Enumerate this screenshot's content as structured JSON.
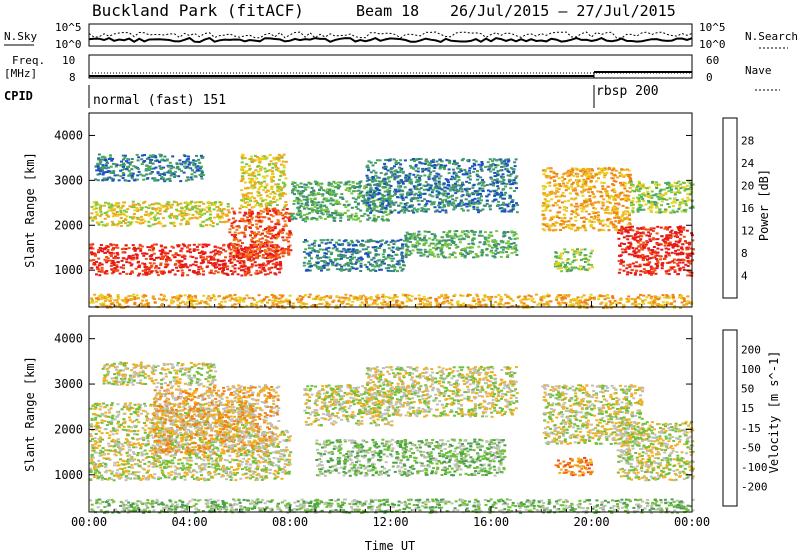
{
  "header": {
    "station": "Buckland Park (fitACF)",
    "beam": "Beam 18",
    "date_range": "26/Jul/2015 – 27/Jul/2015"
  },
  "strips": {
    "nsky_label": "N.Sky",
    "nsky_ticks": [
      "10^5",
      "10^0"
    ],
    "nsearch_label": "N.Search",
    "nsearch_ticks": [
      "10^5",
      "10^0"
    ],
    "freq_label_1": "Freq.",
    "freq_label_2": "[MHz]",
    "freq_ticks": [
      "10",
      "8"
    ],
    "nave_label": "Nave",
    "nave_ticks": [
      "60",
      "0"
    ],
    "cpid_label": "CPID",
    "modes": [
      {
        "name": "normal (fast) 151",
        "start_hour": 0
      },
      {
        "name": "rbsp 200",
        "start_hour": 20.0
      }
    ]
  },
  "chart_data": [
    {
      "type": "heatmap",
      "name": "power",
      "title": "",
      "xlabel": "",
      "ylabel": "Slant Range [km]",
      "xlim": [
        0,
        24
      ],
      "ylim": [
        180,
        4500
      ],
      "y_ticks": [
        1000,
        2000,
        3000,
        4000
      ],
      "colorbar": {
        "label": "Power [dB]",
        "tick_labels": [
          "4",
          "8",
          "12",
          "16",
          "20",
          "24",
          "28"
        ],
        "colors": [
          "#0018ff",
          "#1c4fc4",
          "#3e8a7a",
          "#48a860",
          "#7cc83c",
          "#e8d020",
          "#f0a820",
          "#f08018",
          "#f05018",
          "#e81818"
        ]
      },
      "regions": [
        {
          "h0": 0.0,
          "h1": 7.6,
          "r0": 900,
          "r1": 1600,
          "level": 9
        },
        {
          "h0": 5.5,
          "h1": 8.0,
          "r0": 1300,
          "r1": 2400,
          "level": 8
        },
        {
          "h0": 0.0,
          "h1": 5.5,
          "r0": 2000,
          "r1": 2550,
          "level": 5
        },
        {
          "h0": 6.0,
          "h1": 7.8,
          "r0": 2400,
          "r1": 3600,
          "level": 5
        },
        {
          "h0": 0.2,
          "h1": 4.5,
          "r0": 3000,
          "r1": 3600,
          "level": 2
        },
        {
          "h0": 8.0,
          "h1": 12.0,
          "r0": 2100,
          "r1": 3000,
          "level": 3
        },
        {
          "h0": 8.5,
          "h1": 12.5,
          "r0": 1000,
          "r1": 1700,
          "level": 2
        },
        {
          "h0": 12.5,
          "h1": 17.0,
          "r0": 1300,
          "r1": 1900,
          "level": 3
        },
        {
          "h0": 11.0,
          "h1": 17.0,
          "r0": 2300,
          "r1": 3500,
          "level": 2
        },
        {
          "h0": 18.0,
          "h1": 21.5,
          "r0": 1900,
          "r1": 3300,
          "level": 6
        },
        {
          "h0": 18.5,
          "h1": 20.0,
          "r0": 1000,
          "r1": 1500,
          "level": 4
        },
        {
          "h0": 21.0,
          "h1": 24.0,
          "r0": 900,
          "r1": 2000,
          "level": 9
        },
        {
          "h0": 21.5,
          "h1": 24.0,
          "r0": 2300,
          "r1": 3000,
          "level": 4
        },
        {
          "h0": 0.0,
          "h1": 24.0,
          "r0": 180,
          "r1": 480,
          "level": 6
        }
      ]
    },
    {
      "type": "heatmap",
      "name": "velocity",
      "title": "",
      "xlabel": "Time UT",
      "ylabel": "Slant Range [km]",
      "xlim": [
        0,
        24
      ],
      "ylim": [
        180,
        4500
      ],
      "y_ticks": [
        1000,
        2000,
        3000,
        4000
      ],
      "x_tick_labels": [
        "00:00",
        "04:00",
        "08:00",
        "12:00",
        "16:00",
        "20:00",
        "00:00"
      ],
      "colorbar": {
        "label": "Velocity [m s^-1]",
        "tick_labels": [
          "200",
          "100",
          "50",
          "15",
          "-15",
          "-50",
          "-100",
          "-200"
        ],
        "colors": [
          "#1020c0",
          "#2848b0",
          "#408060",
          "#48a048",
          "#70c038",
          "#c0c0b8",
          "#f0b020",
          "#f08018",
          "#f04818",
          "#e81818"
        ]
      },
      "regions": [
        {
          "h0": 0.0,
          "h1": 8.0,
          "r0": 900,
          "r1": 2000,
          "level": 5
        },
        {
          "h0": 0.0,
          "h1": 6.5,
          "r0": 2000,
          "r1": 2600,
          "level": 5
        },
        {
          "h0": 2.5,
          "h1": 7.5,
          "r0": 1500,
          "r1": 3000,
          "level": 6
        },
        {
          "h0": 0.5,
          "h1": 5.0,
          "r0": 3000,
          "r1": 3500,
          "level": 5
        },
        {
          "h0": 8.5,
          "h1": 12.0,
          "r0": 2100,
          "r1": 3000,
          "level": 5
        },
        {
          "h0": 9.0,
          "h1": 16.5,
          "r0": 1000,
          "r1": 1800,
          "level": 4
        },
        {
          "h0": 11.0,
          "h1": 17.0,
          "r0": 2300,
          "r1": 3400,
          "level": 5
        },
        {
          "h0": 18.0,
          "h1": 22.0,
          "r0": 1700,
          "r1": 3000,
          "level": 5
        },
        {
          "h0": 18.5,
          "h1": 20.0,
          "r0": 1000,
          "r1": 1400,
          "level": 7
        },
        {
          "h0": 21.0,
          "h1": 24.0,
          "r0": 900,
          "r1": 2200,
          "level": 5
        },
        {
          "h0": 0.0,
          "h1": 24.0,
          "r0": 180,
          "r1": 480,
          "level": 4
        }
      ]
    }
  ]
}
